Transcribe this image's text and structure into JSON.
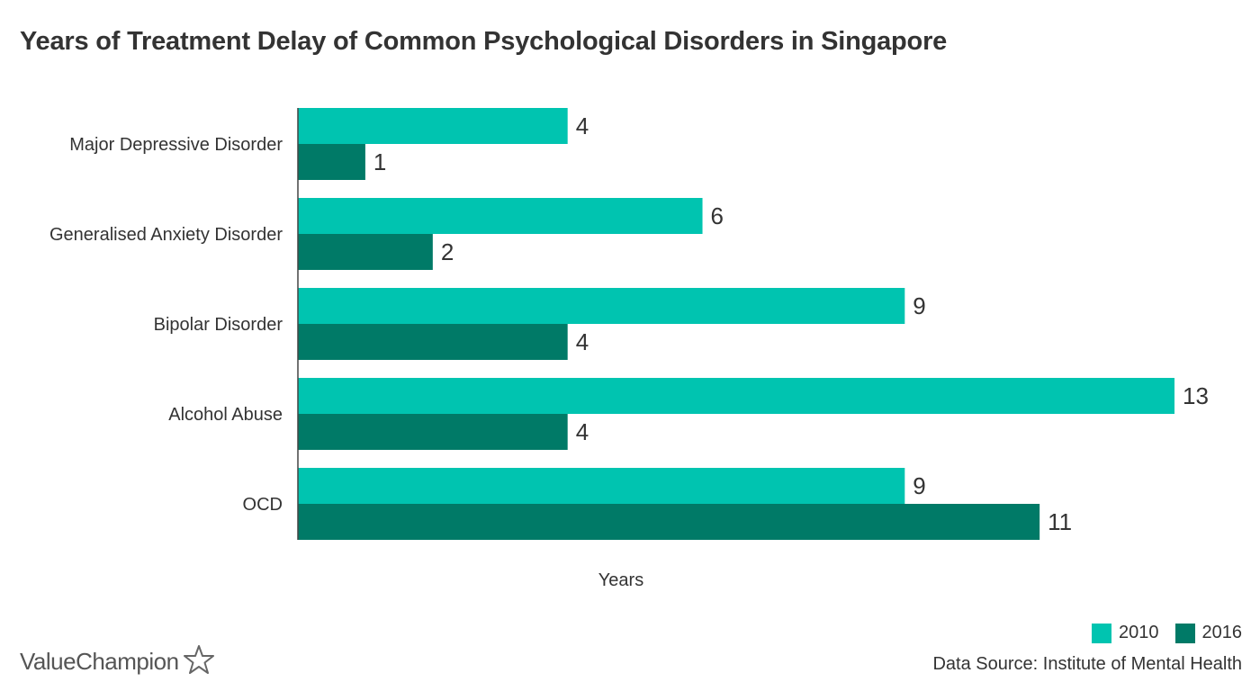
{
  "colors": {
    "series_2010": "#00c4b0",
    "series_2016": "#007a67",
    "text": "#333333",
    "axis": "#444444"
  },
  "chart_data": {
    "type": "bar",
    "orientation": "horizontal",
    "title": "Years of Treatment Delay of Common Psychological Disorders in Singapore",
    "xlabel": "Years",
    "ylabel": "",
    "categories": [
      "Major Depressive Disorder",
      "Generalised Anxiety Disorder",
      "Bipolar Disorder",
      "Alcohol Abuse",
      "OCD"
    ],
    "series": [
      {
        "name": "2010",
        "values": [
          4,
          6,
          9,
          13,
          9
        ]
      },
      {
        "name": "2016",
        "values": [
          1,
          2,
          4,
          4,
          11
        ]
      }
    ],
    "xlim": [
      0,
      13
    ],
    "grid": false,
    "legend": "bottom-right",
    "data_labels": true
  },
  "legend": {
    "items": [
      {
        "label": "2010"
      },
      {
        "label": "2016"
      }
    ]
  },
  "footer": {
    "source": "Data Source: Institute of Mental Health",
    "brand": "ValueChampion",
    "brand_icon": "star-icon"
  }
}
